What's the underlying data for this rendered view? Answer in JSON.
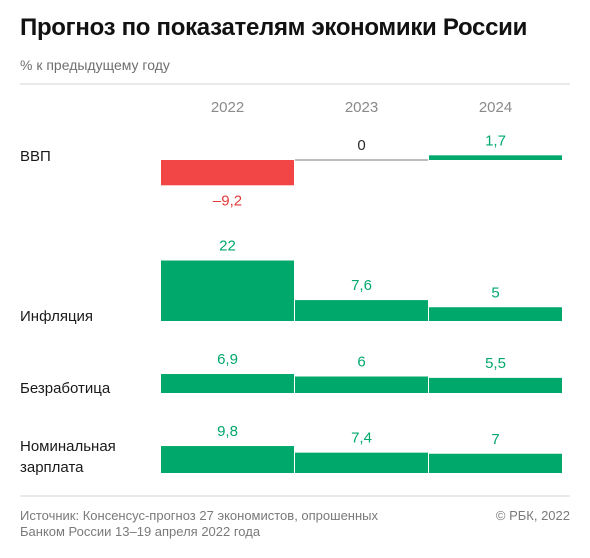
{
  "title": "Прогноз по показателям экономики России",
  "subtitle": "% к предыдущему году",
  "source_line1": "Источник: Консенсус-прогноз 27 экономистов, опрошенных",
  "source_line2": "Банком России 13–19 апреля 2022 года",
  "copyright": "© РБК, 2022",
  "colors": {
    "positive": "#00a86b",
    "negative": "#f24646",
    "negative_label": "#e03a3a",
    "zero_line": "#7a7a7a",
    "axis": "#d4d4d4"
  },
  "chart_data": {
    "type": "bar",
    "categories": [
      "2022",
      "2023",
      "2024"
    ],
    "series": [
      {
        "name": "ВВП",
        "label_lines": [
          "ВВП"
        ],
        "values": [
          -9.2,
          0,
          1.7
        ],
        "labels": [
          "–9,2",
          "0",
          "1,7"
        ]
      },
      {
        "name": "Инфляция",
        "label_lines": [
          "Инфляция"
        ],
        "values": [
          22,
          7.6,
          5
        ],
        "labels": [
          "22",
          "7,6",
          "5"
        ]
      },
      {
        "name": "Безработица",
        "label_lines": [
          "Безработица"
        ],
        "values": [
          6.9,
          6,
          5.5
        ],
        "labels": [
          "6,9",
          "6",
          "5,5"
        ]
      },
      {
        "name": "Номинальная зарплата",
        "label_lines": [
          "Номинальная",
          "зарплата"
        ],
        "values": [
          9.8,
          7.4,
          7
        ],
        "labels": [
          "9,8",
          "7,4",
          "7"
        ]
      }
    ]
  }
}
